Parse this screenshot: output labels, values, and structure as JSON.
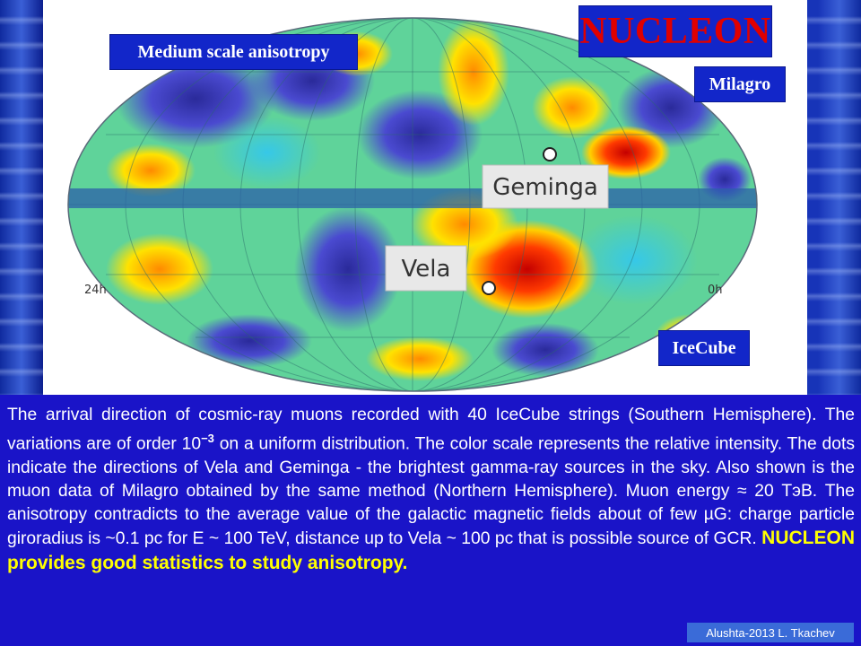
{
  "slide": {
    "title": "NUCLEON",
    "labels": {
      "medium": "Medium scale anisotropy",
      "milagro": "Milagro",
      "icecube": "IceCube"
    },
    "map": {
      "geminga": "Geminga",
      "vela": "Vela",
      "ra_left": "24h",
      "ra_right": "0h"
    },
    "caption": {
      "part1": "The arrival direction of cosmic-ray muons recorded with 40 IceCube strings (Southern Hemisphere). The variations are of order 10",
      "exponent": "−3",
      "part2": " on a uniform distribution. The color scale represents the relative intensity. The dots indicate the directions of Vela and Geminga - the brightest gamma-ray sources in the sky. Also shown is the muon data of Milagro obtained by the same method (Northern Hemisphere). Muon energy ≈ 20 ТэВ. The anisotropy contradicts to the average value of the galactic magnetic fields about of few µG: charge particle giroradius is ~0.1 pc for E ~ 100 TeV, distance up to Vela ~ 100 pc that is possible source of GCR. ",
      "highlight": "NUCLEON provides good statistics to study anisotropy."
    },
    "footer": "Alushta-2013 L. Tkachev",
    "colors": {
      "label_bg": "#1226c9",
      "title_red": "#e00000",
      "caption_bg": "#1a14c8",
      "highlight": "#ffff00"
    }
  }
}
